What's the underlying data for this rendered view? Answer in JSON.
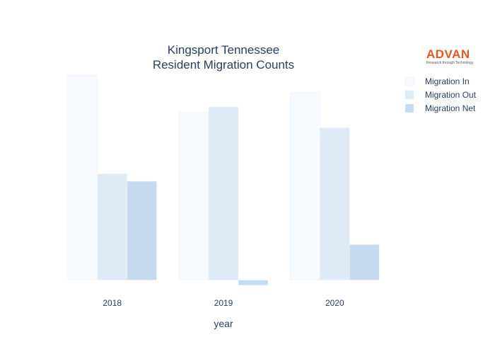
{
  "chart_data": {
    "type": "bar",
    "title_lines": [
      "Kingsport Tennessee",
      "Resident Migration Counts"
    ],
    "xlabel": "year",
    "ylabel": "",
    "categories": [
      "2018",
      "2019",
      "2020"
    ],
    "series": [
      {
        "name": "Migration In",
        "values": [
          1380,
          1130,
          1265
        ],
        "color": "#f7fbff"
      },
      {
        "name": "Migration Out",
        "values": [
          715,
          1165,
          1025
        ],
        "color": "#deebf7"
      },
      {
        "name": "Migration Net",
        "values": [
          665,
          -35,
          240
        ],
        "color": "#c6dbef"
      }
    ],
    "ylim": [
      -45,
      1385
    ],
    "grid": false,
    "legend_position": "top-right"
  },
  "logo": {
    "name": "ADVAN",
    "tagline": "Research through Technology",
    "color": "#e8571f"
  }
}
